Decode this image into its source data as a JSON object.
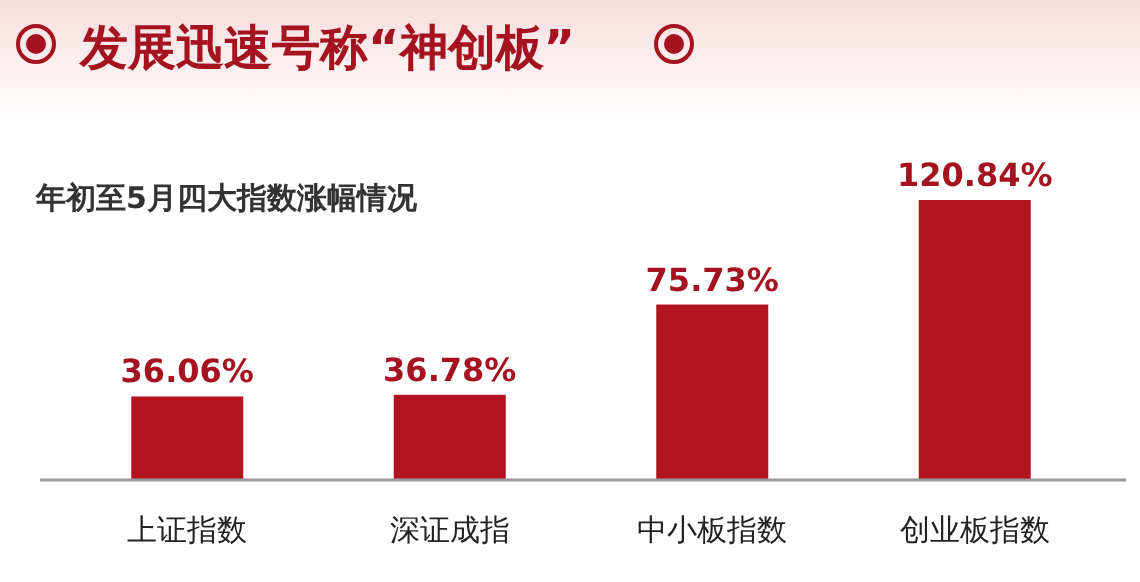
{
  "chart_data": {
    "type": "bar",
    "title": "发展迅速号称“神创板”",
    "subtitle": "年初至5月四大指数涨幅情况",
    "categories": [
      "上证指数",
      "深证成指",
      "中小板指数",
      "创业板指数"
    ],
    "values": [
      36.06,
      36.78,
      75.73,
      120.84
    ],
    "value_labels": [
      "36.06%",
      "36.78%",
      "75.73%",
      "120.84%"
    ],
    "color": "#b3131f"
  }
}
